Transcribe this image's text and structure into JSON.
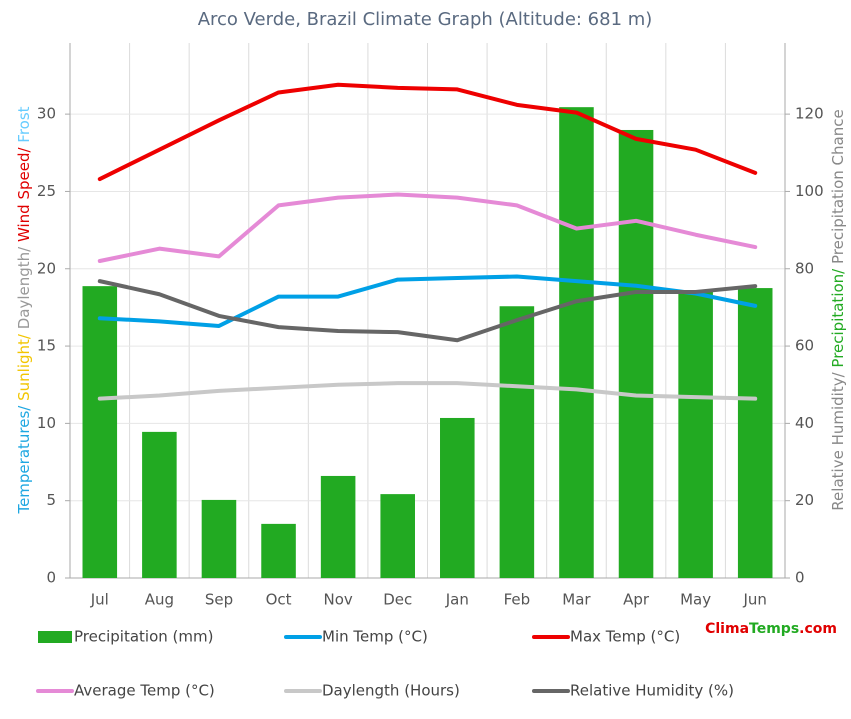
{
  "chart_data": {
    "type": "combo",
    "title": "Arco Verde, Brazil Climate Graph (Altitude: 681 m)",
    "y_label_parts": [
      {
        "text": "Temperatures/",
        "color": "#1ea7e1"
      },
      {
        "text": " Sunlight/",
        "color": "#f2c500"
      },
      {
        "text": " Daylength/",
        "color": "#999999"
      },
      {
        "text": " Wind Speed/",
        "color": "#e00000"
      },
      {
        "text": " Frost",
        "color": "#66ccff"
      }
    ],
    "y2_label_parts": [
      {
        "text": "Relative Humidity/",
        "color": "#888888"
      },
      {
        "text": " Precipitation/",
        "color": "#22aa22"
      },
      {
        "text": " Precipitation Chance",
        "color": "#888888"
      }
    ],
    "watermark_parts": [
      {
        "text": "Clima",
        "color": "#e00000"
      },
      {
        "text": "Temps",
        "color": "#22aa22"
      },
      {
        "text": ".com",
        "color": "#e00000"
      }
    ],
    "categories": [
      "Jul",
      "Aug",
      "Sep",
      "Oct",
      "Nov",
      "Dec",
      "Jan",
      "Feb",
      "Mar",
      "Apr",
      "May",
      "Jun"
    ],
    "ylim": [
      0,
      34.6
    ],
    "yticks": [
      0,
      5,
      10,
      15,
      20,
      25,
      30
    ],
    "y2lim": [
      0,
      138.4
    ],
    "y2ticks": [
      0,
      20,
      40,
      60,
      80,
      100,
      120
    ],
    "grid": true,
    "series": [
      {
        "name": "Precipitation (mm)",
        "type": "bar",
        "axis": "y2",
        "color": "#22aa22",
        "values": [
          75.5,
          37.8,
          20.2,
          14.0,
          26.4,
          21.7,
          41.4,
          70.3,
          121.8,
          115.9,
          74.5,
          75.0
        ]
      },
      {
        "name": "Min Temp (°C)",
        "type": "line",
        "color": "#00a0e6",
        "values": [
          16.8,
          16.6,
          16.3,
          18.2,
          18.2,
          19.3,
          19.4,
          19.5,
          19.2,
          18.9,
          18.4,
          17.6
        ]
      },
      {
        "name": "Max Temp (°C)",
        "type": "line",
        "color": "#ee0000",
        "values": [
          25.8,
          27.7,
          29.6,
          31.4,
          31.9,
          31.7,
          31.6,
          30.6,
          30.1,
          28.4,
          27.7,
          26.2
        ]
      },
      {
        "name": "Average Temp (°C)",
        "type": "line",
        "color": "#e58ad6",
        "values": [
          20.5,
          21.3,
          20.8,
          24.1,
          24.6,
          24.8,
          24.6,
          24.1,
          22.6,
          23.1,
          22.2,
          21.4
        ]
      },
      {
        "name": "Daylength (Hours)",
        "type": "line",
        "color": "#c8c8c8",
        "values": [
          11.6,
          11.8,
          12.1,
          12.3,
          12.5,
          12.6,
          12.6,
          12.4,
          12.2,
          11.8,
          11.7,
          11.6
        ]
      },
      {
        "name": "Relative Humidity (%)",
        "type": "line",
        "axis": "y2",
        "color": "#666666",
        "values": [
          76.8,
          73.4,
          67.8,
          64.9,
          63.9,
          63.6,
          61.5,
          66.7,
          71.6,
          74.0,
          74.0,
          75.5
        ]
      }
    ]
  }
}
